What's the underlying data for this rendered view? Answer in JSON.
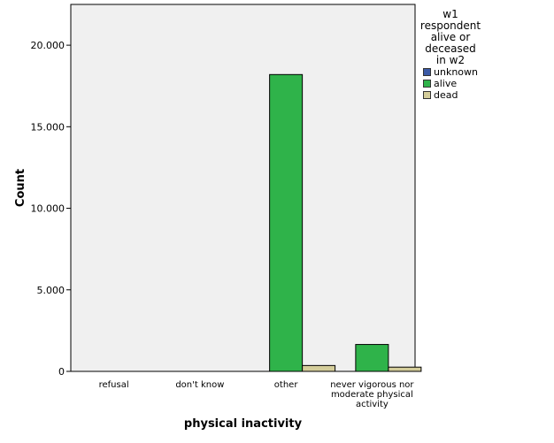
{
  "chart_data": {
    "type": "bar",
    "categories": [
      "refusal",
      "don't know",
      "other",
      "never vigorous nor moderate physical activity"
    ],
    "category_lines": [
      [
        "refusal"
      ],
      [
        "don't know"
      ],
      [
        "other"
      ],
      [
        "never vigorous nor",
        "moderate physical",
        "activity"
      ]
    ],
    "series": [
      {
        "name": "unknown",
        "color": "#3b5aa6",
        "values": [
          0,
          0,
          0,
          0
        ]
      },
      {
        "name": "alive",
        "color": "#2fb34a",
        "values": [
          0,
          0,
          18200,
          1650
        ]
      },
      {
        "name": "dead",
        "color": "#d4cd9a",
        "values": [
          0,
          0,
          360,
          260
        ]
      }
    ],
    "xlabel": "physical inactivity",
    "ylabel": "Count",
    "ylim": [
      0,
      22500
    ],
    "yticks": [
      0,
      5000,
      10000,
      15000,
      20000
    ],
    "ytick_labels": [
      "0",
      "5.000",
      "10.000",
      "15.000",
      "20.000"
    ],
    "legend_title": "w1 respondent alive or deceased in w2",
    "legend_title_lines": [
      "w1",
      "respondent",
      "alive or",
      "deceased",
      "in w2"
    ],
    "legend_position": "right",
    "plot_background": "#f0f0f0",
    "grid": false
  }
}
